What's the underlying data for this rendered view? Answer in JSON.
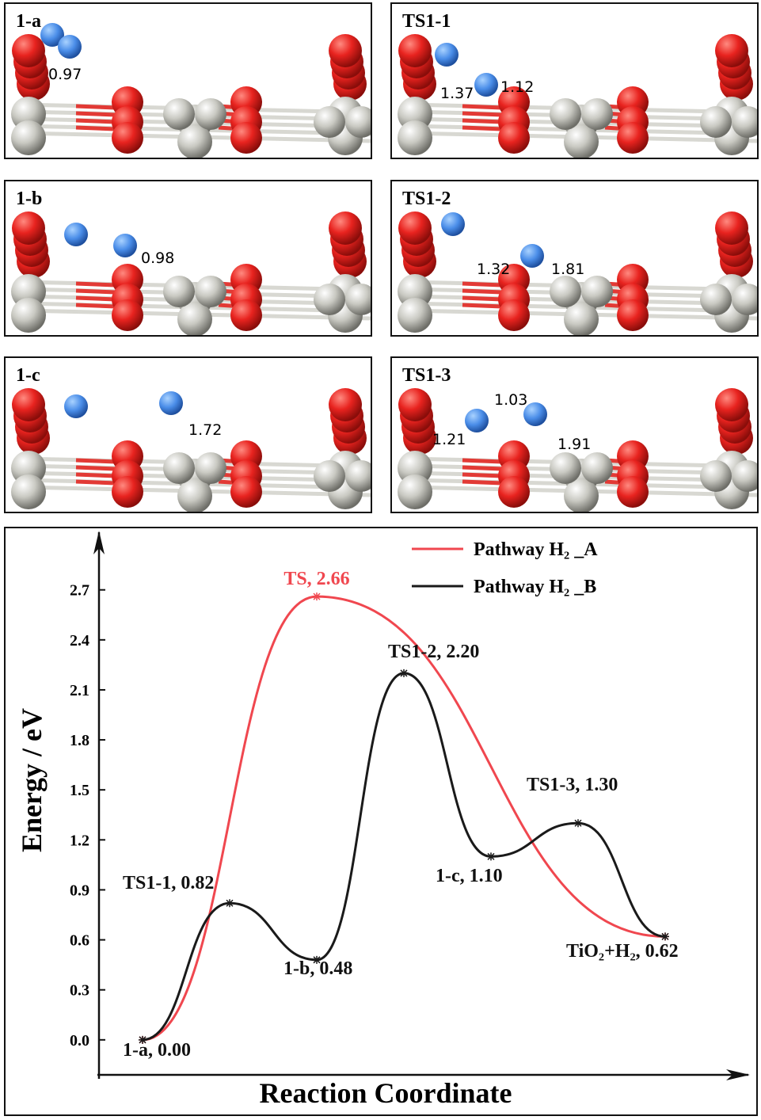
{
  "panels": [
    {
      "label": "1-a",
      "distances": [
        "0.97"
      ]
    },
    {
      "label": "TS1-1",
      "distances": [
        "1.37",
        "1.12"
      ]
    },
    {
      "label": "1-b",
      "distances": [
        "0.98"
      ]
    },
    {
      "label": "TS1-2",
      "distances": [
        "1.32",
        "1.81"
      ]
    },
    {
      "label": "1-c",
      "distances": [
        "1.72"
      ]
    },
    {
      "label": "TS1-3",
      "distances": [
        "1.03",
        "1.21",
        "1.91"
      ]
    }
  ],
  "chart_data": {
    "type": "line",
    "xlabel": "Reaction Coordinate",
    "ylabel": "Energy / eV",
    "xlim": [
      -0.5,
      7
    ],
    "ylim": [
      -0.21,
      2.96
    ],
    "yticks": [
      {
        "value": 0,
        "label": "0.0"
      },
      0.3,
      0.6,
      0.9,
      1.2,
      1.5,
      1.8,
      2.1,
      2.4,
      2.7
    ],
    "legend": "top-right",
    "series": [
      {
        "name": "Pathway H₂ _A",
        "color": "#f0474f",
        "x": [
          0,
          2,
          6
        ],
        "values": [
          0,
          2.66,
          0.62
        ],
        "value_labels": [
          null,
          "TS, 2.66",
          null
        ]
      },
      {
        "name": "Pathway H₂ _B",
        "color": "#1a1a1a",
        "x": [
          0,
          1,
          2,
          3,
          4,
          5,
          6
        ],
        "values": [
          0,
          0.82,
          0.48,
          2.2,
          1.1,
          1.3,
          0.62
        ],
        "value_labels": [
          "1-a, 0.00",
          "TS1-1, 0.82",
          "1-b, 0.48",
          "TS1-2, 2.20",
          "1-c, 1.10",
          "TS1-3, 1.30",
          "TiO₂+H₂, 0.62"
        ]
      }
    ]
  }
}
